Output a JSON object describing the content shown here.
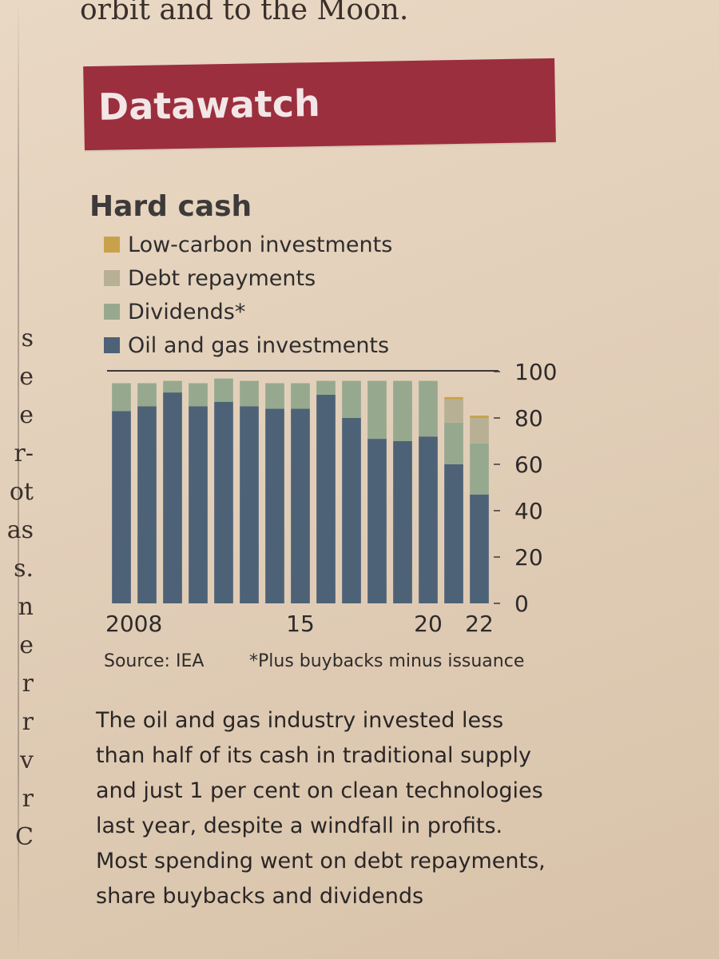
{
  "article": {
    "top_line": "orbit and to the Moon.",
    "left_col_fragments": [
      "s",
      "e",
      "e",
      "r-",
      "ot",
      "as",
      "s.",
      "n",
      "e",
      "r",
      "r",
      "v",
      "r",
      "C"
    ]
  },
  "banner": {
    "label": "Datawatch",
    "color": "#9b2f3e"
  },
  "headline": "Hard cash",
  "legend": [
    {
      "label": "Low-carbon investments",
      "color": "#c8a24a"
    },
    {
      "label": "Debt repayments",
      "color": "#b8b094"
    },
    {
      "label": "Dividends*",
      "color": "#96a98e"
    },
    {
      "label": "Oil and gas investments",
      "color": "#4e6277"
    }
  ],
  "chart_data": {
    "type": "bar",
    "stacked": true,
    "categories": [
      "2008",
      "2009",
      "2010",
      "2011",
      "2012",
      "2013",
      "2014",
      "2015",
      "2016",
      "2017",
      "2018",
      "2019",
      "2020",
      "2021",
      "2022"
    ],
    "x_tick_labels": [
      "2008",
      "15",
      "20",
      "22"
    ],
    "y_ticks": [
      100,
      80,
      60,
      40,
      20,
      0
    ],
    "ylim": [
      0,
      100
    ],
    "y_axis_position": "right",
    "series": [
      {
        "name": "Oil and gas investments",
        "color": "#4e6277",
        "values": [
          83,
          85,
          91,
          85,
          87,
          85,
          84,
          84,
          90,
          80,
          71,
          70,
          72,
          60,
          47
        ]
      },
      {
        "name": "Dividends*",
        "color": "#96a98e",
        "values": [
          12,
          10,
          5,
          10,
          10,
          11,
          11,
          11,
          6,
          16,
          25,
          26,
          24,
          18,
          22
        ]
      },
      {
        "name": "Debt repayments",
        "color": "#b8b094",
        "values": [
          0,
          0,
          0,
          0,
          0,
          0,
          0,
          0,
          0,
          0,
          0,
          0,
          0,
          10,
          11
        ]
      },
      {
        "name": "Low-carbon investments",
        "color": "#c8a24a",
        "values": [
          0,
          0,
          0,
          0,
          0,
          0,
          0,
          0,
          0,
          0,
          0,
          0,
          0,
          1,
          1
        ]
      }
    ]
  },
  "source": "Source: IEA",
  "footnote": "*Plus buybacks minus issuance",
  "body_text": [
    "The oil and gas industry invested less",
    "than half of its cash in traditional supply",
    "and just 1 per cent on clean technologies",
    "last year, despite a windfall in profits.",
    "Most spending went on debt repayments,",
    "share buybacks and dividends"
  ]
}
